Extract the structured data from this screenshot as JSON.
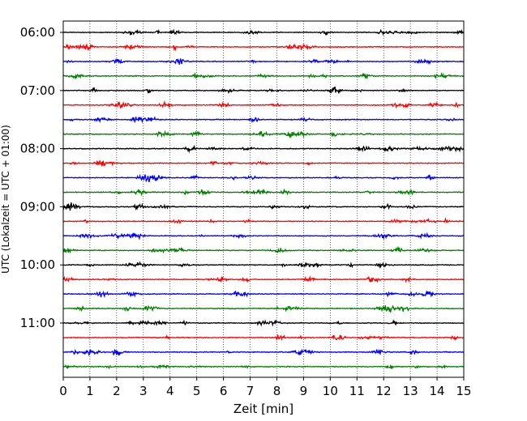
{
  "chart_data": {
    "type": "line",
    "title": "",
    "xlabel": "Zeit  [min]",
    "ylabel": "UTC (Lokalzeit = UTC + 01:00)",
    "xlim": [
      0,
      15
    ],
    "xticks": [
      "0",
      "1",
      "2",
      "3",
      "4",
      "5",
      "6",
      "7",
      "8",
      "9",
      "10",
      "11",
      "12",
      "13",
      "14",
      "15"
    ],
    "grid": "vertical dotted",
    "ytick_rows": [
      0,
      4,
      8,
      12,
      16,
      20
    ],
    "yticks": [
      "06:00",
      "07:00",
      "08:00",
      "09:00",
      "10:00",
      "11:00"
    ],
    "colors": [
      "#000000",
      "#ff0000",
      "#0000ff",
      "#008000"
    ],
    "trace_minutes_each": 15,
    "trace_count": 24,
    "series_note": "seismogram helicorder: 24 consecutive 15-minute traces, colours cycle black, red, blue, green"
  }
}
